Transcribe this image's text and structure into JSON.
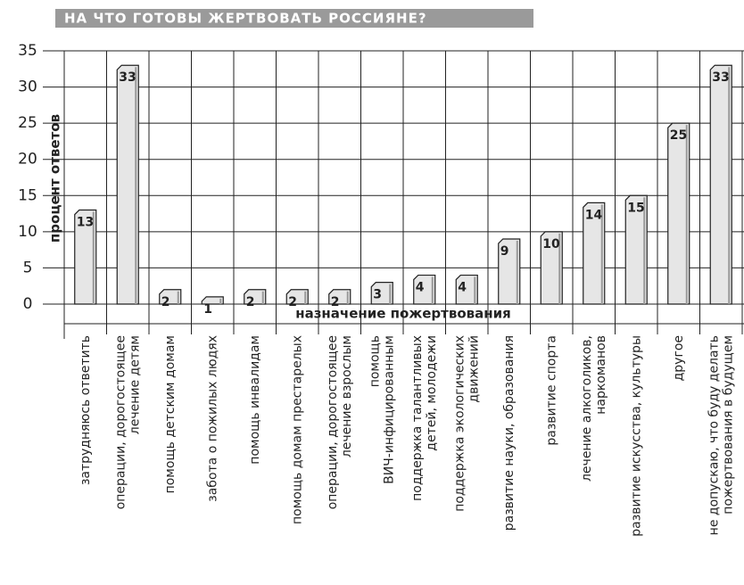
{
  "chart_data": {
    "type": "bar",
    "title": "НА ЧТО ГОТОВЫ ЖЕРТВОВАТЬ РОССИЯНЕ?",
    "y_label": "процент ответов",
    "x_label": "назначение пожертвования",
    "categories": [
      "затрудняюсь ответить",
      "операции, дорогостоящее\nлечение детям",
      "помощь детским домам",
      "забота о пожилых людях",
      "помощь инвалидам",
      "помощь домам престарелых",
      "операции, дорогостоящее\nлечение взрослым",
      "помощь\nВИЧ-инфицированным",
      "поддержка талантливых\nдетей, молодежи",
      "поддержка экологических\nдвижений",
      "развитие науки, образования",
      "развитие спорта",
      "лечение алкоголиков,\nнаркоманов",
      "развитие искусства, культуры",
      "другое",
      "не допускаю, что буду делать\nпожертвования в будущем"
    ],
    "values": [
      13,
      33,
      2,
      1,
      2,
      2,
      2,
      3,
      4,
      4,
      9,
      10,
      14,
      15,
      25,
      33
    ],
    "color": "#e6e6e6",
    "ylim": [
      0,
      35
    ],
    "yticks": [
      0,
      5,
      10,
      15,
      20,
      25,
      30,
      35
    ],
    "grid": true
  }
}
